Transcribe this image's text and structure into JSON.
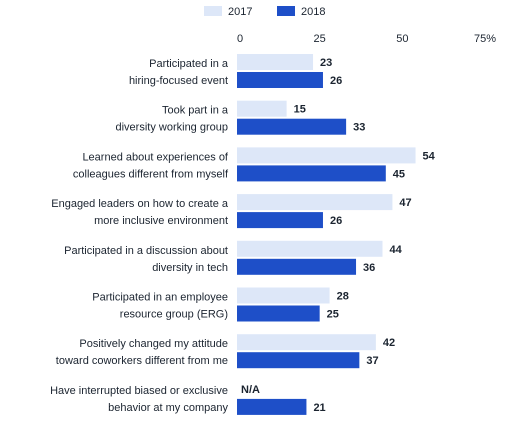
{
  "chart_data": {
    "type": "bar",
    "orientation": "horizontal",
    "xlim": [
      0,
      75
    ],
    "ticks": [
      0,
      25,
      50,
      75
    ],
    "tick_labels": [
      "0",
      "25",
      "50",
      "75%"
    ],
    "grid": false,
    "legend": "top",
    "categories": [
      [
        "Participated in a",
        "hiring-focused event"
      ],
      [
        "Took part in a",
        "diversity working group"
      ],
      [
        "Learned about experiences of",
        "colleagues different from myself"
      ],
      [
        "Engaged leaders on how to create a",
        "more inclusive environment"
      ],
      [
        "Participated in a discussion about",
        "diversity in tech"
      ],
      [
        "Participated in an employee",
        "resource group (ERG)"
      ],
      [
        "Positively changed my attitude",
        "toward coworkers different from me"
      ],
      [
        "Have interrupted biased or exclusive",
        "behavior at my company"
      ]
    ],
    "series": [
      {
        "name": "2017",
        "color": "#dde7f8",
        "values": [
          23,
          15,
          54,
          47,
          44,
          28,
          42,
          null
        ],
        "labels": [
          "23",
          "15",
          "54",
          "47",
          "44",
          "28",
          "42",
          "N/A"
        ]
      },
      {
        "name": "2018",
        "color": "#1e4fc8",
        "values": [
          26,
          33,
          45,
          26,
          36,
          25,
          37,
          21
        ],
        "labels": [
          "26",
          "33",
          "45",
          "26",
          "36",
          "25",
          "37",
          "21"
        ]
      }
    ]
  }
}
